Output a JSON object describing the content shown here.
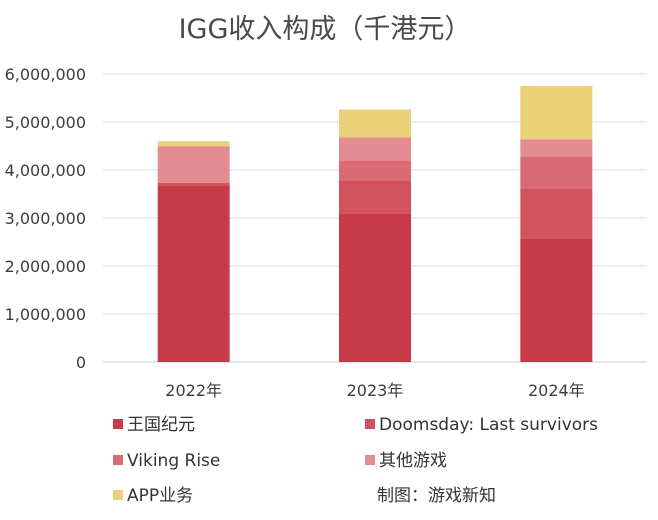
{
  "chart_data": {
    "type": "bar",
    "stacked": true,
    "title": "IGG收入构成（千港元）",
    "categories": [
      "2022年",
      "2023年",
      "2024年"
    ],
    "ylim": [
      0,
      6000000
    ],
    "yticks": [
      0,
      1000000,
      2000000,
      3000000,
      4000000,
      5000000,
      6000000
    ],
    "ytick_labels": [
      "0",
      "1,000,000",
      "2,000,000",
      "3,000,000",
      "4,000,000",
      "5,000,000",
      "6,000,000"
    ],
    "grid": true,
    "legend_position": "bottom",
    "series": [
      {
        "name": "王国纪元",
        "color": "#c93a48",
        "values": [
          3680000,
          3100000,
          2570000
        ]
      },
      {
        "name": "Doomsday: Last survivors",
        "color": "#d4525e",
        "values": [
          50000,
          680000,
          1050000
        ]
      },
      {
        "name": "Viking Rise",
        "color": "#da6a73",
        "values": [
          0,
          420000,
          660000
        ]
      },
      {
        "name": "其他游戏",
        "color": "#e38d92",
        "values": [
          760000,
          480000,
          360000
        ]
      },
      {
        "name": "APP业务",
        "color": "#ebd07a",
        "values": [
          110000,
          580000,
          1110000
        ]
      }
    ],
    "annotation": "制图：游戏新知"
  }
}
